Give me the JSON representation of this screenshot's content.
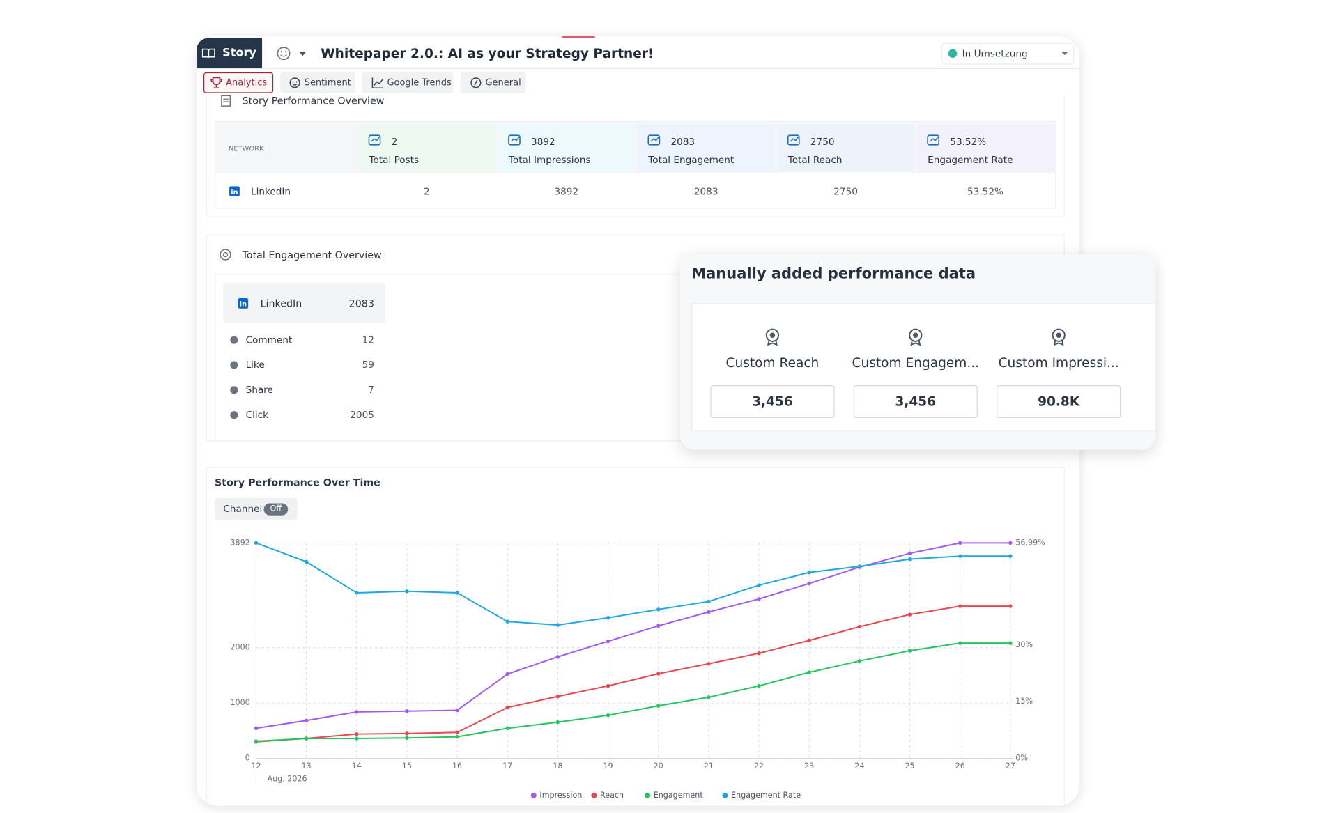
{
  "header": {
    "tab": "Story",
    "title": "Whitepaper 2.0.: AI as your Strategy Partner!",
    "status": "In Umsetzung"
  },
  "tabs": [
    "Analytics",
    "Sentiment",
    "Google Trends",
    "General"
  ],
  "overview": {
    "title": "Story Performance Overview",
    "network_label": "NETWORK",
    "metrics": [
      {
        "value": "2",
        "label": "Total Posts"
      },
      {
        "value": "3892",
        "label": "Total Impressions"
      },
      {
        "value": "2083",
        "label": "Total Engagement"
      },
      {
        "value": "2750",
        "label": "Total Reach"
      },
      {
        "value": "53.52%",
        "label": "Engagement Rate"
      }
    ],
    "rows": [
      {
        "network": "LinkedIn",
        "cells": [
          "2",
          "3892",
          "2083",
          "2750",
          "53.52%"
        ]
      }
    ]
  },
  "engagement": {
    "title": "Total Engagement Overview",
    "network": "LinkedIn",
    "total": "2083",
    "items": [
      {
        "label": "Comment",
        "value": "12"
      },
      {
        "label": "Like",
        "value": "59"
      },
      {
        "label": "Share",
        "value": "7"
      },
      {
        "label": "Click",
        "value": "2005"
      }
    ]
  },
  "popup": {
    "title": "Manually added performance data",
    "items": [
      {
        "label": "Custom Reach",
        "value": "3,456"
      },
      {
        "label": "Custom Engagem...",
        "value": "3,456"
      },
      {
        "label": "Custom Impressi...",
        "value": "90.8K"
      }
    ]
  },
  "chart_controls": {
    "label": "Channel",
    "state": "Off"
  },
  "chart_data": {
    "type": "line",
    "title": "Story Performance Over Time",
    "xlabel": "Aug. 2026",
    "x": [
      12,
      13,
      14,
      15,
      16,
      17,
      18,
      19,
      20,
      21,
      22,
      23,
      24,
      25,
      26,
      27
    ],
    "xlim": [
      12,
      27
    ],
    "xticks": [
      12,
      13,
      14,
      15,
      16,
      17,
      18,
      19,
      20,
      21,
      22,
      23,
      24,
      25,
      26,
      27
    ],
    "ylim": [
      0,
      3892
    ],
    "yticks": [
      0,
      1000,
      2000,
      3892
    ],
    "y2lim": [
      0,
      56.99
    ],
    "y2ticks": [
      {
        "value": 0,
        "label": "0%"
      },
      {
        "value": 15,
        "label": "15%"
      },
      {
        "value": 30,
        "label": "30%"
      },
      {
        "value": 56.99,
        "label": "56.99%"
      }
    ],
    "grid": true,
    "series": [
      {
        "name": "Impression",
        "color": "#a259f0",
        "values": [
          545,
          685,
          840,
          855,
          870,
          1525,
          1835,
          2115,
          2395,
          2645,
          2880,
          3160,
          3455,
          3705,
          3892,
          3892
        ]
      },
      {
        "name": "Reach",
        "color": "#e5484d",
        "values": [
          300,
          360,
          440,
          450,
          470,
          920,
          1120,
          1310,
          1530,
          1710,
          1900,
          2130,
          2380,
          2600,
          2750,
          2750
        ]
      },
      {
        "name": "Engagement",
        "color": "#22c55e",
        "values": [
          310,
          360,
          360,
          370,
          390,
          545,
          655,
          780,
          950,
          1105,
          1310,
          1555,
          1760,
          1945,
          2083,
          2083
        ]
      },
      {
        "name": "Engagement Rate",
        "color": "#1ea7e1",
        "axis": "y2",
        "values": [
          56.99,
          52,
          43.8,
          44.2,
          43.8,
          36.2,
          35.3,
          37.2,
          39.4,
          41.5,
          45.8,
          49.2,
          50.8,
          52.7,
          53.52,
          53.52
        ]
      }
    ]
  }
}
